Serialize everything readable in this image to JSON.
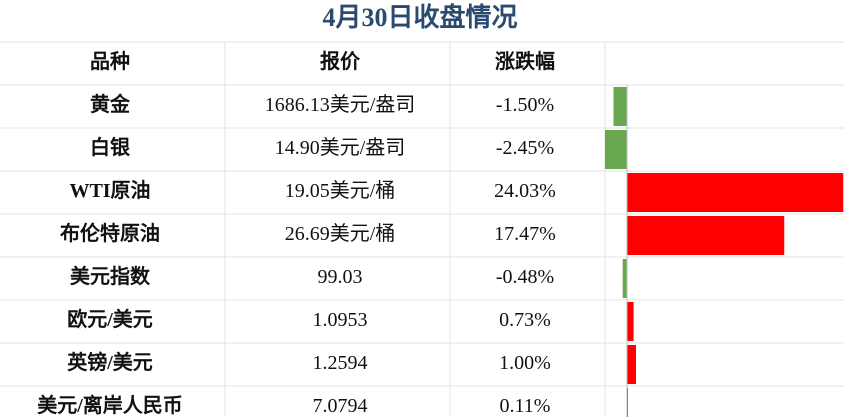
{
  "title": "4月30日收盘情况",
  "table": {
    "header": [
      "品种",
      "报价",
      "涨跌幅"
    ],
    "rows": [
      {
        "name": "黄金",
        "price": "1686.13美元/盎司",
        "change": {
          "value": -1.5,
          "label": "-1.50%"
        }
      },
      {
        "name": "白银",
        "price": "14.90美元/盎司",
        "change": {
          "value": -2.45,
          "label": "-2.45%"
        }
      },
      {
        "name": "WTI原油",
        "price": "19.05美元/桶",
        "change": {
          "value": 24.03,
          "label": "24.03%"
        }
      },
      {
        "name": "布伦特原油",
        "price": "26.69美元/桶",
        "change": {
          "value": 17.47,
          "label": "17.47%"
        }
      },
      {
        "name": "美元指数",
        "price": "99.03",
        "change": {
          "value": -0.48,
          "label": "-0.48%"
        }
      },
      {
        "name": "欧元/美元",
        "price": "1.0953",
        "change": {
          "value": 0.73,
          "label": "0.73%"
        }
      },
      {
        "name": "英镑/美元",
        "price": "1.2594",
        "change": {
          "value": 1.0,
          "label": "1.00%"
        }
      },
      {
        "name": "美元/离岸人民币",
        "price": "7.0794",
        "change": {
          "value": 0.11,
          "label": "0.11%"
        }
      }
    ]
  }
}
